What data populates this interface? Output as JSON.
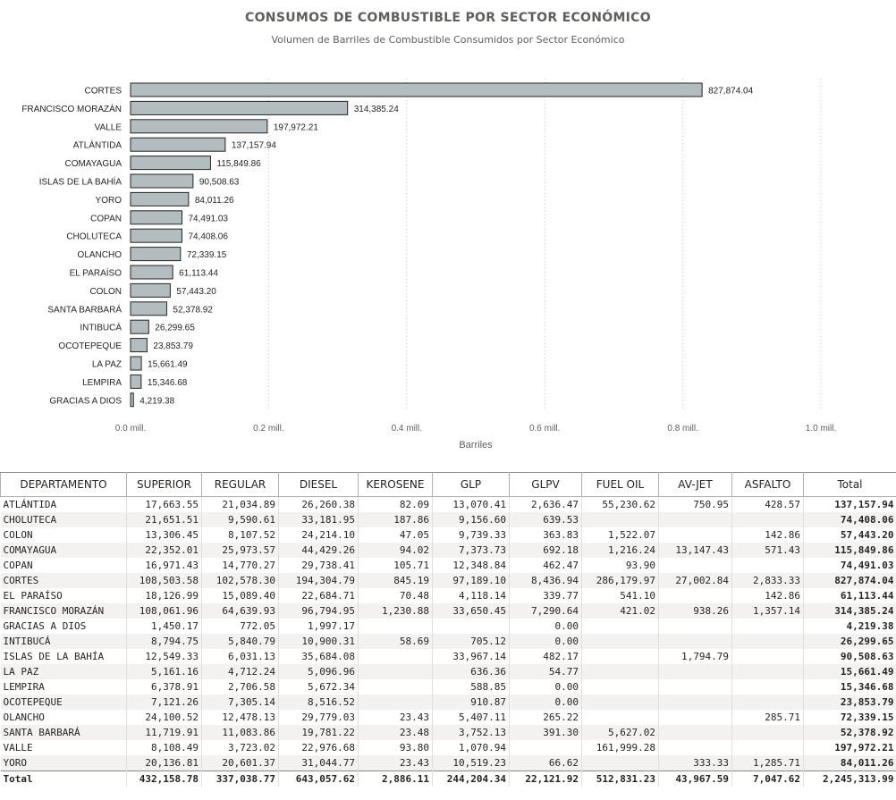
{
  "chart_data": {
    "type": "bar",
    "orientation": "horizontal",
    "title": "CONSUMOS DE COMBUSTIBLE POR SECTOR ECONÓMICO",
    "subtitle": "Volumen de Barriles de Combustible Consumidos por Sector Económico",
    "xlabel": "Barriles",
    "xlim": [
      0,
      1000000
    ],
    "xticks": [
      "0.0 mill.",
      "0.2 mill.",
      "0.4 mill.",
      "0.6 mill.",
      "0.8 mill.",
      "1.0 mill."
    ],
    "grid": "vertical dotted",
    "bar_color": "#b3bcbe",
    "bar_border": "#252423",
    "categories": [
      "CORTES",
      "FRANCISCO MORAZÁN",
      "VALLE",
      "ATLÁNTIDA",
      "COMAYAGUA",
      "ISLAS DE LA BAHÍA",
      "YORO",
      "COPAN",
      "CHOLUTECA",
      "OLANCHO",
      "EL PARAÍSO",
      "COLON",
      "SANTA BARBARÁ",
      "INTIBUCÁ",
      "OCOTEPEQUE",
      "LA PAZ",
      "LEMPIRA",
      "GRACIAS A DIOS"
    ],
    "values": [
      827874.04,
      314385.24,
      197972.21,
      137157.94,
      115849.86,
      90508.63,
      84011.26,
      74491.03,
      74408.06,
      72339.15,
      61113.44,
      57443.2,
      52378.92,
      26299.65,
      23853.79,
      15661.49,
      15346.68,
      4219.38
    ],
    "value_labels": [
      "827,874.04",
      "314,385.24",
      "197,972.21",
      "137,157.94",
      "115,849.86",
      "90,508.63",
      "84,011.26",
      "74,491.03",
      "74,408.06",
      "72,339.15",
      "61,113.44",
      "57,443.20",
      "52,378.92",
      "26,299.65",
      "23,853.79",
      "15,661.49",
      "15,346.68",
      "4,219.38"
    ]
  },
  "table": {
    "headers": [
      "DEPARTAMENTO",
      "SUPERIOR",
      "REGULAR",
      "DIESEL",
      "KEROSENE",
      "GLP",
      "GLPV",
      "FUEL OIL",
      "AV-JET",
      "ASFALTO",
      "Total"
    ],
    "rows": [
      [
        "ATLÁNTIDA",
        "17,663.55",
        "21,034.89",
        "26,260.38",
        "82.09",
        "13,070.41",
        "2,636.47",
        "55,230.62",
        "750.95",
        "428.57",
        "137,157.94"
      ],
      [
        "CHOLUTECA",
        "21,651.51",
        "9,590.61",
        "33,181.95",
        "187.86",
        "9,156.60",
        "639.53",
        "",
        "",
        "",
        "74,408.06"
      ],
      [
        "COLON",
        "13,306.45",
        "8,107.52",
        "24,214.10",
        "47.05",
        "9,739.33",
        "363.83",
        "1,522.07",
        "",
        "142.86",
        "57,443.20"
      ],
      [
        "COMAYAGUA",
        "22,352.01",
        "25,973.57",
        "44,429.26",
        "94.02",
        "7,373.73",
        "692.18",
        "1,216.24",
        "13,147.43",
        "571.43",
        "115,849.86"
      ],
      [
        "COPAN",
        "16,971.43",
        "14,770.27",
        "29,738.41",
        "105.71",
        "12,348.84",
        "462.47",
        "93.90",
        "",
        "",
        "74,491.03"
      ],
      [
        "CORTES",
        "108,503.58",
        "102,578.30",
        "194,304.79",
        "845.19",
        "97,189.10",
        "8,436.94",
        "286,179.97",
        "27,002.84",
        "2,833.33",
        "827,874.04"
      ],
      [
        "EL PARAÍSO",
        "18,126.99",
        "15,089.40",
        "22,684.71",
        "70.48",
        "4,118.14",
        "339.77",
        "541.10",
        "",
        "142.86",
        "61,113.44"
      ],
      [
        "FRANCISCO MORAZÁN",
        "108,061.96",
        "64,639.93",
        "96,794.95",
        "1,230.88",
        "33,650.45",
        "7,290.64",
        "421.02",
        "938.26",
        "1,357.14",
        "314,385.24"
      ],
      [
        "GRACIAS A DIOS",
        "1,450.17",
        "772.05",
        "1,997.17",
        "",
        "",
        "0.00",
        "",
        "",
        "",
        "4,219.38"
      ],
      [
        "INTIBUCÁ",
        "8,794.75",
        "5,840.79",
        "10,900.31",
        "58.69",
        "705.12",
        "0.00",
        "",
        "",
        "",
        "26,299.65"
      ],
      [
        "ISLAS DE LA BAHÍA",
        "12,549.33",
        "6,031.13",
        "35,684.08",
        "",
        "33,967.14",
        "482.17",
        "",
        "1,794.79",
        "",
        "90,508.63"
      ],
      [
        "LA PAZ",
        "5,161.16",
        "4,712.24",
        "5,096.96",
        "",
        "636.36",
        "54.77",
        "",
        "",
        "",
        "15,661.49"
      ],
      [
        "LEMPIRA",
        "6,378.91",
        "2,706.58",
        "5,672.34",
        "",
        "588.85",
        "0.00",
        "",
        "",
        "",
        "15,346.68"
      ],
      [
        "OCOTEPEQUE",
        "7,121.26",
        "7,305.14",
        "8,516.52",
        "",
        "910.87",
        "0.00",
        "",
        "",
        "",
        "23,853.79"
      ],
      [
        "OLANCHO",
        "24,100.52",
        "12,478.13",
        "29,779.03",
        "23.43",
        "5,407.11",
        "265.22",
        "",
        "",
        "285.71",
        "72,339.15"
      ],
      [
        "SANTA BARBARÁ",
        "11,719.91",
        "11,083.86",
        "19,781.22",
        "23.48",
        "3,752.13",
        "391.30",
        "5,627.02",
        "",
        "",
        "52,378.92"
      ],
      [
        "VALLE",
        "8,108.49",
        "3,723.02",
        "22,976.68",
        "93.80",
        "1,070.94",
        "",
        "161,999.28",
        "",
        "",
        "197,972.21"
      ],
      [
        "YORO",
        "20,136.81",
        "20,601.37",
        "31,044.77",
        "23.43",
        "10,519.23",
        "66.62",
        "",
        "333.33",
        "1,285.71",
        "84,011.26"
      ]
    ],
    "totals": [
      "Total",
      "432,158.78",
      "337,038.77",
      "643,057.62",
      "2,886.11",
      "244,204.34",
      "22,121.92",
      "512,831.23",
      "43,967.59",
      "7,047.62",
      "2,245,313.99"
    ]
  }
}
